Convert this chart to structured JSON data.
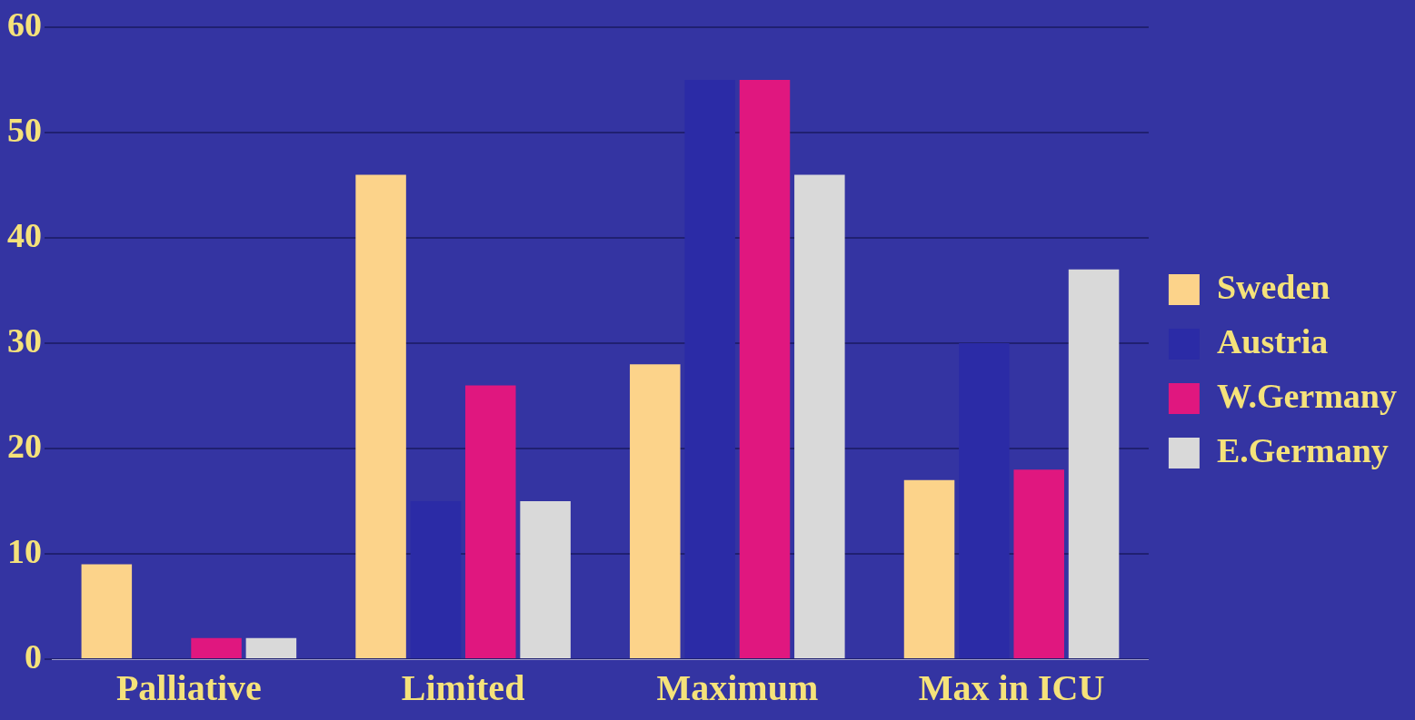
{
  "chart_data": {
    "type": "bar",
    "categories": [
      "Palliative",
      "Limited",
      "Maximum",
      "Max in ICU"
    ],
    "series": [
      {
        "name": "Sweden",
        "color": "#fcd38a",
        "values": [
          9,
          46,
          28,
          17
        ]
      },
      {
        "name": "Austria",
        "color": "#2b2ba6",
        "values": [
          0,
          15,
          55,
          30
        ]
      },
      {
        "name": "W.Germany",
        "color": "#e0177f",
        "values": [
          2,
          26,
          55,
          18
        ]
      },
      {
        "name": "E.Germany",
        "color": "#d9d9d9",
        "values": [
          2,
          15,
          46,
          37
        ]
      }
    ],
    "ylim": [
      0,
      60
    ],
    "yticks": [
      0,
      10,
      20,
      30,
      40,
      50,
      60
    ],
    "grid": "y",
    "legend": "right"
  }
}
